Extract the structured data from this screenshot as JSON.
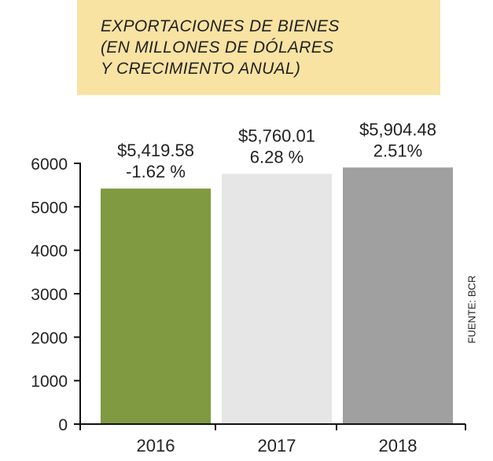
{
  "title": {
    "line1": "EXPORTACIONES DE BIENES",
    "line2": "(EN MILLONES DE DÓLARES",
    "line3": "Y CRECIMIENTO ANUAL)"
  },
  "source": "FUENTE: BCR",
  "colors": {
    "title_background": "#f8e3a3",
    "bar_2016": "#7f9a41",
    "bar_2017": "#e6e6e6",
    "bar_2018": "#a0a0a0"
  },
  "chart_data": {
    "type": "bar",
    "title": "EXPORTACIONES DE BIENES (EN MILLONES DE DÓLARES Y CRECIMIENTO ANUAL)",
    "categories": [
      "2016",
      "2017",
      "2018"
    ],
    "values": [
      5419.58,
      5760.01,
      5904.48
    ],
    "value_labels": [
      "$5,419.58",
      "$5,760.01",
      "$5,904.48"
    ],
    "growth_labels": [
      "-1.62 %",
      "6.28 %",
      "2.51%"
    ],
    "growth": [
      -1.62,
      6.28,
      2.51
    ],
    "bar_colors": [
      "#7f9a41",
      "#e6e6e6",
      "#a0a0a0"
    ],
    "yticks": [
      "0",
      "1000",
      "2000",
      "3000",
      "4000",
      "5000",
      "6000"
    ],
    "ylim": [
      0,
      6000
    ],
    "xlabel": "",
    "ylabel": "",
    "grid": false
  }
}
